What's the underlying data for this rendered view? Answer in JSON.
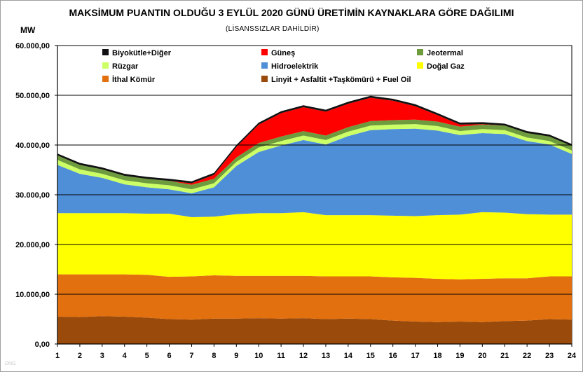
{
  "chart_data": {
    "type": "area",
    "stacked": true,
    "title": "MAKSİMUM PUANTIN OLDUĞU 3 EYLÜL 2020 GÜNÜ ÜRETİMİN KAYNAKLARA GÖRE DAĞILIMI",
    "subtitle": "(LİSANSSIZLAR DAHİLDİR)",
    "ylabel": "MW",
    "xlabel": "",
    "ylim": [
      0,
      60000
    ],
    "yticks": [
      "0,00",
      "10.000,00",
      "20.000,00",
      "30.000,00",
      "40.000,00",
      "50.000,00",
      "60.000,00"
    ],
    "x": [
      "1",
      "2",
      "3",
      "4",
      "5",
      "6",
      "7",
      "8",
      "9",
      "10",
      "11",
      "12",
      "13",
      "14",
      "15",
      "16",
      "17",
      "18",
      "19",
      "20",
      "21",
      "22",
      "23",
      "24"
    ],
    "grid": true,
    "legend_position": "top",
    "series": [
      {
        "name": "Linyit + Asfaltit +Taşkömürü + Fuel Oil",
        "color": "#9a4a0a",
        "values": [
          5500,
          5400,
          5600,
          5500,
          5300,
          5000,
          4900,
          5100,
          5100,
          5200,
          5100,
          5200,
          5000,
          5100,
          5000,
          4700,
          4500,
          4400,
          4500,
          4400,
          4600,
          4700,
          5000,
          4900
        ]
      },
      {
        "name": "İthal Kömür",
        "color": "#e2700f",
        "values": [
          8500,
          8600,
          8400,
          8500,
          8600,
          8500,
          8700,
          8700,
          8600,
          8500,
          8600,
          8500,
          8600,
          8500,
          8600,
          8700,
          8800,
          8700,
          8500,
          8700,
          8600,
          8500,
          8600,
          8700
        ]
      },
      {
        "name": "Doğal Gaz",
        "color": "#ffff00",
        "values": [
          12300,
          12300,
          12300,
          12300,
          12300,
          12700,
          11900,
          11800,
          12400,
          12600,
          12600,
          12800,
          12300,
          12300,
          12300,
          12400,
          12400,
          12800,
          13000,
          13400,
          13200,
          12900,
          12400,
          12400
        ]
      },
      {
        "name": "Hidroelektrik",
        "color": "#4f8fd8",
        "values": [
          9700,
          7900,
          7100,
          5800,
          5300,
          4900,
          4800,
          5900,
          9700,
          12300,
          13600,
          14500,
          14200,
          15900,
          17100,
          17400,
          17600,
          17000,
          16000,
          15900,
          15800,
          14700,
          14100,
          12200
        ]
      },
      {
        "name": "Rüzgar",
        "color": "#ccff66",
        "values": [
          1000,
          900,
          800,
          800,
          800,
          800,
          800,
          800,
          800,
          900,
          900,
          900,
          900,
          900,
          900,
          900,
          900,
          900,
          800,
          800,
          800,
          700,
          700,
          700
        ]
      },
      {
        "name": "Jeotermal",
        "color": "#6e9b3d",
        "values": [
          900,
          900,
          900,
          900,
          900,
          900,
          900,
          900,
          900,
          900,
          900,
          900,
          900,
          900,
          900,
          900,
          900,
          900,
          900,
          900,
          900,
          900,
          900,
          900
        ]
      },
      {
        "name": "Güneş",
        "color": "#ff0000",
        "values": [
          0,
          0,
          0,
          0,
          0,
          0,
          300,
          800,
          2100,
          3700,
          4700,
          4800,
          4800,
          4700,
          4700,
          3900,
          2700,
          1300,
          400,
          100,
          0,
          0,
          0,
          0
        ]
      },
      {
        "name": "Biyokütle+Diğer",
        "color": "#111111",
        "values": [
          400,
          400,
          400,
          400,
          400,
          400,
          400,
          400,
          400,
          400,
          400,
          400,
          400,
          400,
          400,
          400,
          400,
          400,
          400,
          400,
          400,
          400,
          400,
          400
        ]
      }
    ],
    "legend_order": [
      "Biyokütle+Diğer",
      "Güneş",
      "Jeotermal",
      "Rüzgar",
      "Hidroelektrik",
      "Doğal Gaz",
      "İthal Kömür",
      "Linyit + Asfaltit +Taşkömürü + Fuel Oil"
    ]
  },
  "watermark": "DNG"
}
